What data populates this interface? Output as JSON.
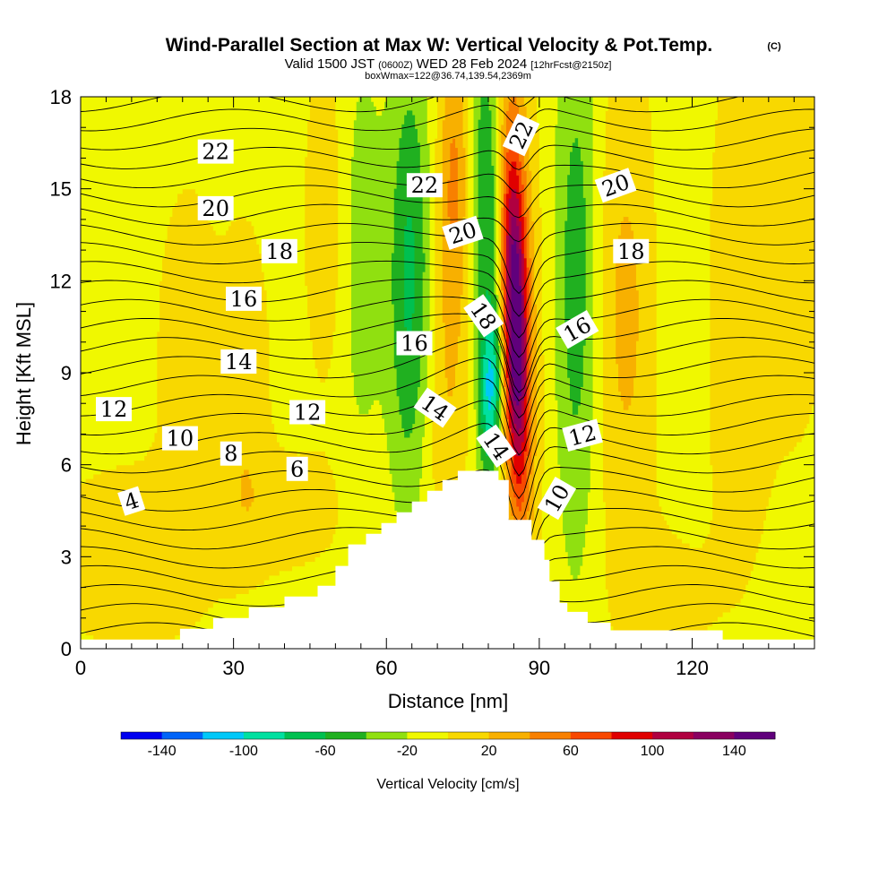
{
  "title": {
    "main": "Wind-Parallel Section at Max W: Vertical Velocity & Pot.Temp.",
    "copyright": "(C)",
    "valid_prefix": "Valid 1500 JST",
    "valid_utc": "(0600Z)",
    "valid_date": "WED 28 Feb 2024",
    "forecast": "[12hrFcst@2150z]",
    "box_info": "boxWmax=122@36.74,139.54,2369m"
  },
  "chart_data": {
    "type": "heatmap",
    "xlabel": "Distance [nm]",
    "ylabel": "Height [Kft MSL]",
    "xlim": [
      0,
      144
    ],
    "ylim": [
      0,
      18
    ],
    "xticks": [
      0,
      30,
      60,
      90,
      120
    ],
    "yticks": [
      0,
      3,
      6,
      9,
      12,
      15,
      18
    ],
    "colorbar": {
      "label": "Vertical Velocity [cm/s]",
      "tick_labels": [
        "-140",
        "-100",
        "-60",
        "-20",
        "20",
        "60",
        "100",
        "140"
      ],
      "levels": [
        -150,
        -130,
        -110,
        -90,
        -70,
        -50,
        -30,
        -10,
        10,
        30,
        50,
        70,
        90,
        110,
        130,
        150,
        170
      ],
      "colors": [
        "#0000f0",
        "#0064f8",
        "#00c8f8",
        "#00e0a0",
        "#00c050",
        "#20b020",
        "#90e010",
        "#f0f800",
        "#f8d800",
        "#f8b000",
        "#f88000",
        "#f84800",
        "#e00000",
        "#b00040",
        "#8a0060",
        "#60007c"
      ]
    },
    "terrain": [
      [
        0,
        0.3
      ],
      [
        19.5,
        0.3
      ],
      [
        19.5,
        0.65
      ],
      [
        26,
        0.65
      ],
      [
        26,
        1.0
      ],
      [
        33,
        1.0
      ],
      [
        33,
        1.35
      ],
      [
        40,
        1.35
      ],
      [
        40,
        1.7
      ],
      [
        46.5,
        1.7
      ],
      [
        46.5,
        2.05
      ],
      [
        50,
        2.05
      ],
      [
        50,
        2.7
      ],
      [
        52.5,
        2.7
      ],
      [
        52.5,
        3.4
      ],
      [
        56,
        3.4
      ],
      [
        56,
        3.75
      ],
      [
        59,
        3.75
      ],
      [
        59,
        4.1
      ],
      [
        62,
        4.1
      ],
      [
        62,
        4.45
      ],
      [
        65,
        4.45
      ],
      [
        65,
        4.8
      ],
      [
        68,
        4.8
      ],
      [
        68,
        5.15
      ],
      [
        71,
        5.15
      ],
      [
        71,
        5.5
      ],
      [
        74,
        5.5
      ],
      [
        74,
        5.8
      ],
      [
        82,
        5.8
      ],
      [
        82,
        5.5
      ],
      [
        84,
        5.5
      ],
      [
        84,
        4.2
      ],
      [
        88.5,
        4.2
      ],
      [
        88.5,
        3.55
      ],
      [
        91,
        3.55
      ],
      [
        91,
        2.9
      ],
      [
        92,
        2.9
      ],
      [
        92,
        2.2
      ],
      [
        94,
        2.2
      ],
      [
        94,
        1.5
      ],
      [
        95.5,
        1.5
      ],
      [
        95.5,
        1.2
      ],
      [
        99.5,
        1.2
      ],
      [
        99.5,
        0.85
      ],
      [
        104,
        0.85
      ],
      [
        104,
        0.6
      ],
      [
        126,
        0.6
      ],
      [
        126,
        0.3
      ],
      [
        144,
        0.3
      ]
    ],
    "theta_contour_labels": [
      {
        "value": "4",
        "x": 10,
        "y": 4.8,
        "angle": -18
      },
      {
        "value": "6",
        "x": 42.5,
        "y": 5.85,
        "angle": 0
      },
      {
        "value": "8",
        "x": 29.5,
        "y": 6.35,
        "angle": 0
      },
      {
        "value": "10",
        "x": 19.5,
        "y": 6.85,
        "angle": 0
      },
      {
        "value": "12",
        "x": 6.5,
        "y": 7.8,
        "angle": 0
      },
      {
        "value": "12",
        "x": 44.5,
        "y": 7.7,
        "angle": 0
      },
      {
        "value": "14",
        "x": 31,
        "y": 9.35,
        "angle": 0
      },
      {
        "value": "16",
        "x": 32,
        "y": 11.4,
        "angle": 0
      },
      {
        "value": "18",
        "x": 39,
        "y": 12.95,
        "angle": 0
      },
      {
        "value": "20",
        "x": 26.5,
        "y": 14.35,
        "angle": 0
      },
      {
        "value": "22",
        "x": 26.5,
        "y": 16.2,
        "angle": 0
      },
      {
        "value": "22",
        "x": 67.5,
        "y": 15.1,
        "angle": 0
      },
      {
        "value": "20",
        "x": 75,
        "y": 13.55,
        "angle": -18
      },
      {
        "value": "16",
        "x": 65.5,
        "y": 9.95,
        "angle": 0
      },
      {
        "value": "18",
        "x": 79,
        "y": 10.85,
        "angle": 55
      },
      {
        "value": "14",
        "x": 69.5,
        "y": 7.85,
        "angle": 35
      },
      {
        "value": "14",
        "x": 81.5,
        "y": 6.6,
        "angle": 55
      },
      {
        "value": "22",
        "x": 86.5,
        "y": 16.75,
        "angle": -65
      },
      {
        "value": "20",
        "x": 105,
        "y": 15.1,
        "angle": -20
      },
      {
        "value": "18",
        "x": 108,
        "y": 12.95,
        "angle": 0
      },
      {
        "value": "16",
        "x": 97.5,
        "y": 10.4,
        "angle": -30
      },
      {
        "value": "12",
        "x": 98.5,
        "y": 6.95,
        "angle": -15
      },
      {
        "value": "10",
        "x": 93.5,
        "y": 4.9,
        "angle": -60
      }
    ]
  }
}
